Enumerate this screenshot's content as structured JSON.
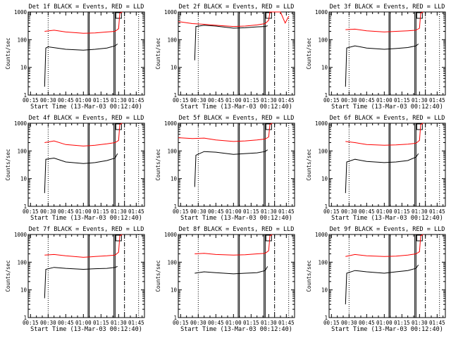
{
  "figure": {
    "xtick_labels": [
      "00:15",
      "00:30",
      "00:45",
      "01:00",
      "01:15",
      "01:30",
      "01:45"
    ],
    "ytick_labels": [
      "1",
      "10",
      "100",
      "1000"
    ],
    "xlabel": "Start Time (13-Mar-03 00:12:40)",
    "ylabel": "Counts/sec",
    "colors": {
      "events": "#000000",
      "lld": "#ff0000",
      "axes": "#000000"
    }
  },
  "chart_data": [
    {
      "type": "line",
      "title": "Det 1f BLACK = Events, RED = LLD",
      "xlabel": "Start Time (13-Mar-03 00:12:40)",
      "ylabel": "Counts/sec",
      "y_scale": "log",
      "ylim": [
        1,
        1000
      ],
      "xlim": [
        "00:13",
        "01:52"
      ],
      "markers": {
        "dotted": [
          "00:30",
          "01:47"
        ],
        "solid": [
          "01:04",
          "01:05",
          "01:26",
          "01:27"
        ],
        "dashdot": [
          "01:35"
        ],
        "boxed_label_at": "01:30"
      },
      "series": [
        {
          "points": [
            [
              "00:27",
              2
            ],
            [
              "00:28",
              50
            ],
            [
              "00:30",
              55
            ],
            [
              "00:45",
              45
            ],
            [
              "01:00",
              42
            ],
            [
              "01:10",
              45
            ],
            [
              "01:20",
              50
            ],
            [
              "01:27",
              60
            ],
            [
              "01:29",
              70
            ]
          ]
        },
        {
          "points": [
            [
              "00:27",
              200
            ],
            [
              "00:35",
              220
            ],
            [
              "00:45",
              190
            ],
            [
              "01:00",
              170
            ],
            [
              "01:10",
              175
            ],
            [
              "01:20",
              190
            ],
            [
              "01:27",
              200
            ],
            [
              "01:30",
              250
            ],
            [
              "01:31",
              900
            ],
            [
              "01:33",
              1000
            ]
          ]
        }
      ]
    },
    {
      "type": "line",
      "title": "Det 2f BLACK = Events, RED = LLD",
      "xlabel": "Start Time (13-Mar-03 00:12:40)",
      "ylabel": "Counts/sec",
      "y_scale": "log",
      "ylim": [
        1,
        1000
      ],
      "xlim": [
        "00:13",
        "01:52"
      ],
      "markers": {
        "dotted": [
          "00:30",
          "01:47"
        ],
        "solid": [
          "01:04",
          "01:05",
          "01:26",
          "01:27"
        ],
        "dashdot": [
          "01:35"
        ],
        "boxed_label_at": "01:30"
      },
      "series": [
        {
          "points": [
            [
              "00:27",
              18
            ],
            [
              "00:28",
              300
            ],
            [
              "00:35",
              330
            ],
            [
              "00:45",
              310
            ],
            [
              "01:00",
              260
            ],
            [
              "01:10",
              270
            ],
            [
              "01:20",
              290
            ],
            [
              "01:27",
              300
            ],
            [
              "01:29",
              320
            ]
          ]
        },
        {
          "points": [
            [
              "00:13",
              450
            ],
            [
              "00:25",
              380
            ],
            [
              "00:35",
              360
            ],
            [
              "00:45",
              330
            ],
            [
              "01:00",
              300
            ],
            [
              "01:10",
              310
            ],
            [
              "01:20",
              340
            ],
            [
              "01:27",
              380
            ],
            [
              "01:30",
              500
            ],
            [
              "01:31",
              1000
            ],
            [
              "01:40",
              1000
            ],
            [
              "01:44",
              400
            ],
            [
              "01:47",
              700
            ]
          ]
        }
      ]
    },
    {
      "type": "line",
      "title": "Det 3f BLACK = Events, RED = LLD",
      "xlabel": "Start Time (13-Mar-03 00:12:40)",
      "ylabel": "Counts/sec",
      "y_scale": "log",
      "ylim": [
        1,
        1000
      ],
      "xlim": [
        "00:13",
        "01:52"
      ],
      "markers": {
        "dotted": [
          "00:30",
          "01:47"
        ],
        "solid": [
          "01:04",
          "01:05",
          "01:26",
          "01:27"
        ],
        "dashdot": [
          "01:35"
        ],
        "boxed_label_at": "01:30"
      },
      "series": [
        {
          "points": [
            [
              "00:27",
              2
            ],
            [
              "00:28",
              50
            ],
            [
              "00:35",
              60
            ],
            [
              "00:45",
              50
            ],
            [
              "01:00",
              45
            ],
            [
              "01:10",
              48
            ],
            [
              "01:20",
              52
            ],
            [
              "01:27",
              60
            ],
            [
              "01:29",
              70
            ]
          ]
        },
        {
          "points": [
            [
              "00:27",
              230
            ],
            [
              "00:35",
              240
            ],
            [
              "00:45",
              210
            ],
            [
              "01:00",
              190
            ],
            [
              "01:10",
              200
            ],
            [
              "01:20",
              210
            ],
            [
              "01:27",
              220
            ],
            [
              "01:30",
              260
            ],
            [
              "01:31",
              900
            ],
            [
              "01:33",
              1000
            ]
          ]
        }
      ]
    },
    {
      "type": "line",
      "title": "Det 4f BLACK = Events, RED = LLD",
      "xlabel": "Start Time (13-Mar-03 00:12:40)",
      "ylabel": "Counts/sec",
      "y_scale": "log",
      "ylim": [
        1,
        1000
      ],
      "xlim": [
        "00:13",
        "01:52"
      ],
      "markers": {
        "dotted": [
          "00:30",
          "01:47"
        ],
        "solid": [
          "01:04",
          "01:05",
          "01:26",
          "01:27"
        ],
        "dashdot": [
          "01:35"
        ],
        "boxed_label_at": "01:30"
      },
      "series": [
        {
          "points": [
            [
              "00:27",
              3
            ],
            [
              "00:28",
              50
            ],
            [
              "00:35",
              55
            ],
            [
              "00:45",
              40
            ],
            [
              "01:00",
              35
            ],
            [
              "01:10",
              38
            ],
            [
              "01:20",
              45
            ],
            [
              "01:27",
              55
            ],
            [
              "01:29",
              80
            ]
          ]
        },
        {
          "points": [
            [
              "00:27",
              200
            ],
            [
              "00:35",
              230
            ],
            [
              "00:45",
              170
            ],
            [
              "01:00",
              150
            ],
            [
              "01:10",
              160
            ],
            [
              "01:20",
              180
            ],
            [
              "01:27",
              200
            ],
            [
              "01:30",
              240
            ],
            [
              "01:31",
              900
            ],
            [
              "01:33",
              1000
            ]
          ]
        }
      ]
    },
    {
      "type": "line",
      "title": "Det 5f BLACK = Events, RED = LLD",
      "xlabel": "Start Time (13-Mar-03 00:12:40)",
      "ylabel": "Counts/sec",
      "y_scale": "log",
      "ylim": [
        1,
        1000
      ],
      "xlim": [
        "00:13",
        "01:52"
      ],
      "markers": {
        "dotted": [
          "00:30",
          "01:47"
        ],
        "solid": [
          "01:04",
          "01:05",
          "01:26",
          "01:27"
        ],
        "dashdot": [
          "01:35"
        ],
        "boxed_label_at": "01:30"
      },
      "series": [
        {
          "points": [
            [
              "00:27",
              5
            ],
            [
              "00:28",
              70
            ],
            [
              "00:35",
              95
            ],
            [
              "00:45",
              90
            ],
            [
              "01:00",
              75
            ],
            [
              "01:10",
              80
            ],
            [
              "01:20",
              85
            ],
            [
              "01:27",
              95
            ],
            [
              "01:29",
              110
            ]
          ]
        },
        {
          "points": [
            [
              "00:13",
              300
            ],
            [
              "00:25",
              280
            ],
            [
              "00:35",
              290
            ],
            [
              "00:45",
              250
            ],
            [
              "01:00",
              220
            ],
            [
              "01:10",
              230
            ],
            [
              "01:20",
              250
            ],
            [
              "01:27",
              270
            ],
            [
              "01:30",
              320
            ],
            [
              "01:31",
              900
            ],
            [
              "01:33",
              1000
            ]
          ]
        }
      ]
    },
    {
      "type": "line",
      "title": "Det 6f BLACK = Events, RED = LLD",
      "xlabel": "Start Time (13-Mar-03 00:12:40)",
      "ylabel": "Counts/sec",
      "y_scale": "log",
      "ylim": [
        1,
        1000
      ],
      "xlim": [
        "00:13",
        "01:52"
      ],
      "markers": {
        "dotted": [
          "00:30",
          "01:47"
        ],
        "solid": [
          "01:04",
          "01:05",
          "01:26",
          "01:27"
        ],
        "dashdot": [
          "01:35"
        ],
        "boxed_label_at": "01:30"
      },
      "series": [
        {
          "points": [
            [
              "00:27",
              3
            ],
            [
              "00:28",
              40
            ],
            [
              "00:35",
              50
            ],
            [
              "00:45",
              42
            ],
            [
              "01:00",
              38
            ],
            [
              "01:10",
              40
            ],
            [
              "01:20",
              45
            ],
            [
              "01:27",
              60
            ],
            [
              "01:29",
              80
            ]
          ]
        },
        {
          "points": [
            [
              "00:27",
              220
            ],
            [
              "00:35",
              200
            ],
            [
              "00:45",
              170
            ],
            [
              "01:00",
              160
            ],
            [
              "01:10",
              165
            ],
            [
              "01:20",
              175
            ],
            [
              "01:27",
              190
            ],
            [
              "01:30",
              240
            ],
            [
              "01:31",
              900
            ],
            [
              "01:33",
              1000
            ]
          ]
        }
      ]
    },
    {
      "type": "line",
      "title": "Det 7f BLACK = Events, RED = LLD",
      "xlabel": "Start Time (13-Mar-03 00:12:40)",
      "ylabel": "Counts/sec",
      "y_scale": "log",
      "ylim": [
        1,
        1000
      ],
      "xlim": [
        "00:13",
        "01:52"
      ],
      "markers": {
        "dotted": [
          "00:30",
          "01:47"
        ],
        "solid": [
          "01:04",
          "01:05",
          "01:26",
          "01:27"
        ],
        "dashdot": [
          "01:35"
        ],
        "boxed_label_at": "01:30"
      },
      "series": [
        {
          "points": [
            [
              "00:27",
              5
            ],
            [
              "00:28",
              55
            ],
            [
              "00:35",
              65
            ],
            [
              "00:45",
              60
            ],
            [
              "01:00",
              55
            ],
            [
              "01:10",
              58
            ],
            [
              "01:20",
              60
            ],
            [
              "01:27",
              65
            ],
            [
              "01:29",
              70
            ]
          ]
        },
        {
          "points": [
            [
              "00:27",
              180
            ],
            [
              "00:35",
              190
            ],
            [
              "00:45",
              170
            ],
            [
              "01:00",
              150
            ],
            [
              "01:10",
              160
            ],
            [
              "01:20",
              170
            ],
            [
              "01:27",
              180
            ],
            [
              "01:30",
              230
            ],
            [
              "01:31",
              900
            ],
            [
              "01:33",
              1000
            ]
          ]
        }
      ]
    },
    {
      "type": "line",
      "title": "Det 8f BLACK = Events, RED = LLD",
      "xlabel": "Start Time (13-Mar-03 00:12:40)",
      "ylabel": "Counts/sec",
      "y_scale": "log",
      "ylim": [
        1,
        1000
      ],
      "xlim": [
        "00:13",
        "01:52"
      ],
      "markers": {
        "dotted": [
          "00:30",
          "01:47"
        ],
        "solid": [
          "01:04",
          "01:05",
          "01:26",
          "01:27"
        ],
        "dashdot": [
          "01:35"
        ],
        "boxed_label_at": "01:30"
      },
      "series": [
        {
          "points": [
            [
              "00:27",
              40
            ],
            [
              "00:35",
              45
            ],
            [
              "00:45",
              42
            ],
            [
              "01:00",
              38
            ],
            [
              "01:10",
              40
            ],
            [
              "01:20",
              42
            ],
            [
              "01:27",
              50
            ],
            [
              "01:29",
              70
            ]
          ]
        },
        {
          "points": [
            [
              "00:27",
              200
            ],
            [
              "00:35",
              210
            ],
            [
              "00:45",
              190
            ],
            [
              "01:00",
              180
            ],
            [
              "01:10",
              185
            ],
            [
              "01:20",
              200
            ],
            [
              "01:27",
              210
            ],
            [
              "01:30",
              260
            ],
            [
              "01:31",
              900
            ],
            [
              "01:33",
              1000
            ]
          ]
        }
      ]
    },
    {
      "type": "line",
      "title": "Det 9f BLACK = Events, RED = LLD",
      "xlabel": "Start Time (13-Mar-03 00:12:40)",
      "ylabel": "Counts/sec",
      "y_scale": "log",
      "ylim": [
        1,
        1000
      ],
      "xlim": [
        "00:13",
        "01:52"
      ],
      "markers": {
        "dotted": [
          "00:30",
          "01:47"
        ],
        "solid": [
          "01:04",
          "01:05",
          "01:26",
          "01:27"
        ],
        "dashdot": [
          "01:35"
        ],
        "boxed_label_at": "01:30"
      },
      "series": [
        {
          "points": [
            [
              "00:27",
              3
            ],
            [
              "00:28",
              40
            ],
            [
              "00:35",
              50
            ],
            [
              "00:45",
              45
            ],
            [
              "01:00",
              40
            ],
            [
              "01:10",
              45
            ],
            [
              "01:20",
              50
            ],
            [
              "01:27",
              60
            ],
            [
              "01:29",
              80
            ]
          ]
        },
        {
          "points": [
            [
              "00:27",
              160
            ],
            [
              "00:35",
              190
            ],
            [
              "00:45",
              170
            ],
            [
              "01:00",
              160
            ],
            [
              "01:10",
              165
            ],
            [
              "01:20",
              180
            ],
            [
              "01:27",
              200
            ],
            [
              "01:30",
              240
            ],
            [
              "01:31",
              900
            ],
            [
              "01:33",
              1000
            ]
          ]
        }
      ]
    }
  ]
}
